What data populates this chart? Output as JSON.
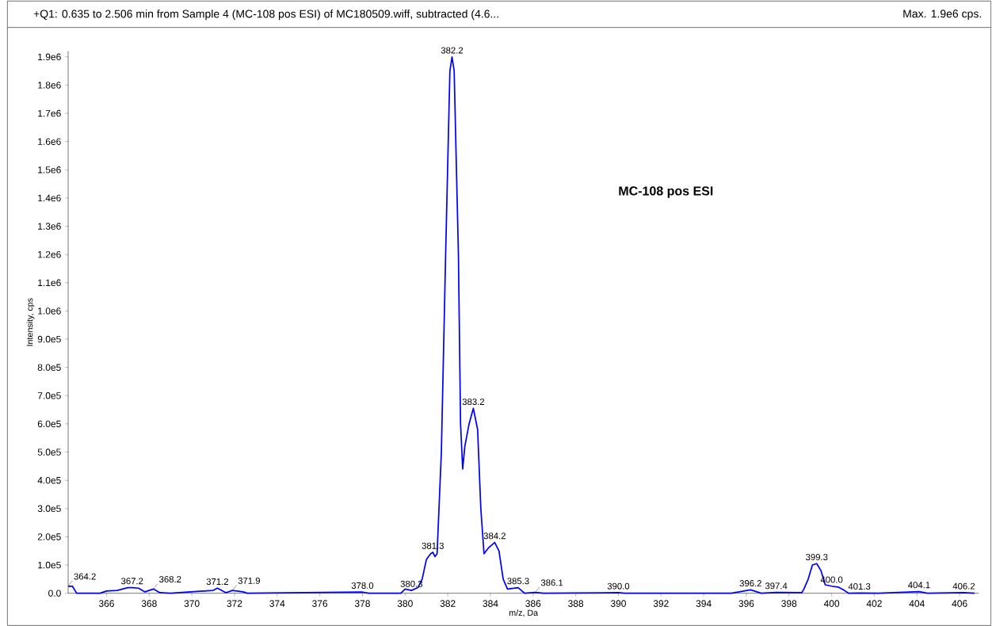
{
  "chart_data": {
    "type": "line",
    "title": "+Q1: 0.635 to 2.506 min from Sample 4 (MC-108 pos ESI) of MC180509.wiff, subtracted (4.6...",
    "subtitle": "Max. 1.9e6 cps.",
    "xlabel": "m/z, Da",
    "ylabel": "Intensity, cps",
    "color": "#0000ff",
    "grid": false,
    "marker": "none",
    "line_style": "solid",
    "xlim": [
      364.2,
      406.9
    ],
    "ylim": [
      0,
      1920000
    ],
    "xticks": [
      366,
      368,
      370,
      372,
      374,
      376,
      378,
      380,
      382,
      384,
      386,
      388,
      390,
      392,
      394,
      396,
      398,
      400,
      402,
      404,
      406
    ],
    "yticks": [
      {
        "value": 0,
        "label": "0.0"
      },
      {
        "value": 100000,
        "label": "1.0e5"
      },
      {
        "value": 200000,
        "label": "2.0e5"
      },
      {
        "value": 300000,
        "label": "3.0e5"
      },
      {
        "value": 400000,
        "label": "4.0e5"
      },
      {
        "value": 500000,
        "label": "5.0e5"
      },
      {
        "value": 600000,
        "label": "6.0e5"
      },
      {
        "value": 700000,
        "label": "7.0e5"
      },
      {
        "value": 800000,
        "label": "8.0e5"
      },
      {
        "value": 900000,
        "label": "9.0e5"
      },
      {
        "value": 1000000,
        "label": "1.0e6"
      },
      {
        "value": 1100000,
        "label": "1.1e6"
      },
      {
        "value": 1200000,
        "label": "1.2e6"
      },
      {
        "value": 1300000,
        "label": "1.3e6"
      },
      {
        "value": 1400000,
        "label": "1.4e6"
      },
      {
        "value": 1500000,
        "label": "1.5e6"
      },
      {
        "value": 1600000,
        "label": "1.6e6"
      },
      {
        "value": 1700000,
        "label": "1.7e6"
      },
      {
        "value": 1800000,
        "label": "1.8e6"
      },
      {
        "value": 1900000,
        "label": "1.9e6"
      }
    ],
    "x": [
      364.2,
      364.4,
      364.6,
      365.7,
      366.0,
      366.5,
      367.0,
      367.2,
      367.5,
      367.8,
      368.2,
      368.5,
      369.0,
      371.0,
      371.2,
      371.6,
      371.9,
      372.4,
      372.6,
      378.0,
      378.3,
      379.8,
      380.0,
      380.3,
      380.6,
      380.8,
      381.0,
      381.2,
      381.3,
      381.4,
      381.5,
      381.7,
      381.9,
      382.1,
      382.2,
      382.3,
      382.5,
      382.6,
      382.7,
      382.8,
      383.0,
      383.2,
      383.4,
      383.55,
      383.7,
      383.9,
      384.2,
      384.4,
      384.6,
      384.8,
      385.3,
      385.6,
      386.1,
      386.5,
      390.0,
      390.3,
      395.3,
      396.2,
      396.7,
      397.4,
      398.6,
      398.7,
      398.9,
      399.1,
      399.3,
      399.5,
      399.7,
      400.0,
      400.3,
      400.6,
      400.8,
      401.3,
      402.2,
      404.1,
      404.5,
      406.2,
      406.7
    ],
    "values": [
      25000,
      25000,
      0,
      0,
      8000,
      10000,
      20000,
      20000,
      18000,
      5000,
      15000,
      2000,
      0,
      10000,
      18000,
      2000,
      10000,
      5000,
      0,
      4000,
      0,
      0,
      15000,
      10000,
      20000,
      50000,
      120000,
      140000,
      145000,
      130000,
      140000,
      500000,
      1200000,
      1850000,
      1900000,
      1850000,
      1200000,
      600000,
      440000,
      520000,
      600000,
      655000,
      580000,
      300000,
      140000,
      160000,
      180000,
      150000,
      50000,
      15000,
      20000,
      0,
      3000,
      0,
      2000,
      0,
      0,
      12000,
      0,
      3000,
      2000,
      15000,
      50000,
      100000,
      105000,
      80000,
      30000,
      25000,
      22000,
      10000,
      0,
      1000,
      0,
      6000,
      0,
      2000,
      0
    ],
    "annotations": [
      "MC-108 pos ESI",
      {
        "text": "364.2",
        "x": 364.2,
        "y": 25000
      },
      {
        "text": "367.2",
        "x": 367.2,
        "y": 20000
      },
      {
        "text": "368.2",
        "x": 368.2,
        "y": 15000
      },
      {
        "text": "371.2",
        "x": 371.2,
        "y": 18000
      },
      {
        "text": "371.9",
        "x": 371.9,
        "y": 10000
      },
      {
        "text": "378.0",
        "x": 378.0,
        "y": 4000
      },
      {
        "text": "380.3",
        "x": 380.3,
        "y": 10000
      },
      {
        "text": "381.3",
        "x": 381.3,
        "y": 145000
      },
      {
        "text": "382.2",
        "x": 382.2,
        "y": 1900000
      },
      {
        "text": "383.2",
        "x": 383.2,
        "y": 655000
      },
      {
        "text": "384.2",
        "x": 384.2,
        "y": 180000
      },
      {
        "text": "385.3",
        "x": 385.3,
        "y": 20000
      },
      {
        "text": "386.1",
        "x": 386.1,
        "y": 3000
      },
      {
        "text": "390.0",
        "x": 390.0,
        "y": 2000
      },
      {
        "text": "396.2",
        "x": 396.2,
        "y": 12000
      },
      {
        "text": "397.4",
        "x": 397.4,
        "y": 3000
      },
      {
        "text": "399.3",
        "x": 399.3,
        "y": 105000
      },
      {
        "text": "400.0",
        "x": 400.0,
        "y": 25000
      },
      {
        "text": "401.3",
        "x": 401.3,
        "y": 1000
      },
      {
        "text": "404.1",
        "x": 404.1,
        "y": 6000
      },
      {
        "text": "406.2",
        "x": 406.2,
        "y": 2000
      }
    ]
  }
}
